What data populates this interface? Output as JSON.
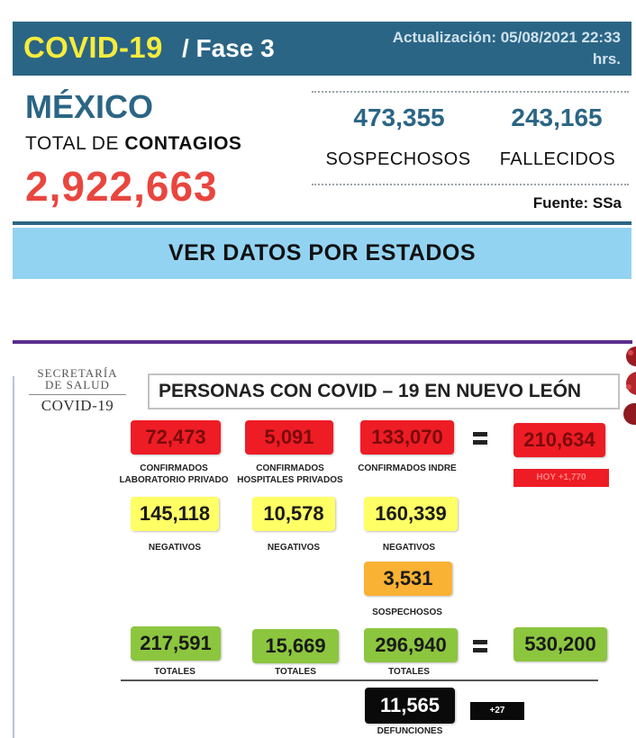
{
  "header": {
    "title": "COVID-19",
    "phase": "/ Fase 3",
    "updated_line1": "Actualización: 05/08/2021 22:33",
    "updated_line2": "hrs."
  },
  "summary": {
    "country": "MÉXICO",
    "total_label_prefix": "TOTAL DE ",
    "total_label_bold": "CONTAGIOS",
    "total_value": "2,922,663",
    "suspected_value": "473,355",
    "suspected_label": "SOSPECHOSOS",
    "deaths_value": "243,165",
    "deaths_label": "FALLECIDOS",
    "source": "Fuente: SSa"
  },
  "states_button": {
    "label": "VER DATOS POR ESTADOS"
  },
  "infographic": {
    "agency_line1": "SECRETARÍA",
    "agency_line2": "DE SALUD",
    "agency_line3": "COVID-19",
    "title": "PERSONAS CON COVID – 19 EN NUEVO LEÓN",
    "confirmed": {
      "private_lab": {
        "value": "72,473",
        "label": "CONFIRMADOS LABORATORIO PRIVADO"
      },
      "private_hosp": {
        "value": "5,091",
        "label": "CONFIRMADOS HOSPITALES PRIVADOS"
      },
      "indre": {
        "value": "133,070",
        "label": "CONFIRMADOS INDRE"
      },
      "total": {
        "value": "210,634",
        "today": "HOY +1,770"
      }
    },
    "negatives": {
      "private_lab": {
        "value": "145,118",
        "label": "NEGATIVOS"
      },
      "private_hosp": {
        "value": "10,578",
        "label": "NEGATIVOS"
      },
      "indre": {
        "value": "160,339",
        "label": "NEGATIVOS"
      }
    },
    "suspected": {
      "value": "3,531",
      "label": "SOSPECHOSOS"
    },
    "totals": {
      "private_lab": {
        "value": "217,591",
        "label": "TOTALES"
      },
      "private_hosp": {
        "value": "15,669",
        "label": "TOTALES"
      },
      "indre": {
        "value": "296,940",
        "label": "TOTALES"
      },
      "grand": {
        "value": "530,200"
      }
    },
    "deaths": {
      "value": "11,565",
      "label": "DEFUNCIONES",
      "today": "+27"
    },
    "colors": {
      "red": "#ee1c25",
      "yellow": "#ffff66",
      "orange": "#f9b233",
      "green": "#8cc63f",
      "black": "#0a0a0a"
    }
  }
}
